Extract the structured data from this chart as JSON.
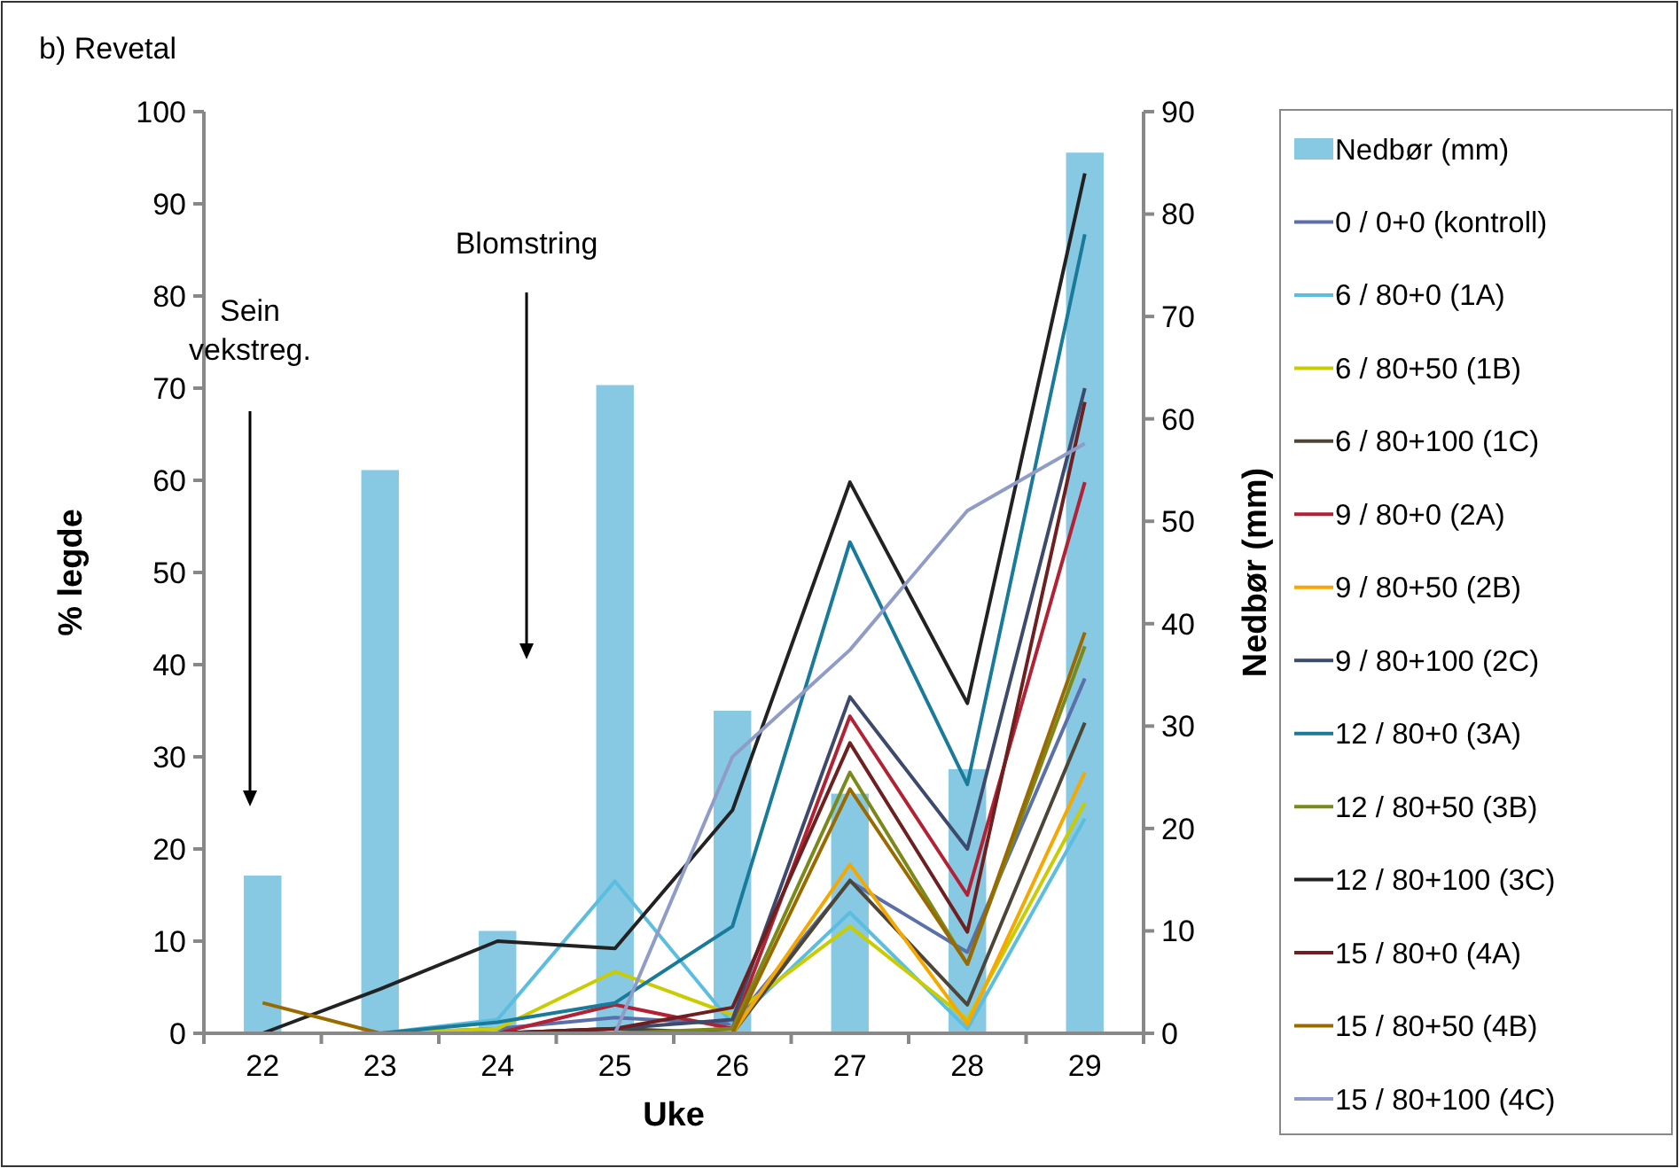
{
  "chart_data": {
    "type": "line",
    "title": "b) Revetal",
    "xlabel": "Uke",
    "ylabel": "% legde",
    "y2label": "Nedbør (mm)",
    "categories": [
      "22",
      "23",
      "24",
      "25",
      "26",
      "27",
      "28",
      "29"
    ],
    "ylim": [
      0,
      100
    ],
    "yticks": [
      0,
      10,
      20,
      30,
      40,
      50,
      60,
      70,
      80,
      90,
      100
    ],
    "y2lim": [
      0,
      90
    ],
    "y2ticks": [
      0,
      10,
      20,
      30,
      40,
      50,
      60,
      70,
      80,
      90
    ],
    "grid": false,
    "legend": "right",
    "annotations": [
      "Sein vekstreg.",
      "Blomstring"
    ],
    "series": [
      {
        "name": "Nedbør (mm)",
        "type": "bar",
        "axis": "y2",
        "color": "#87c9e3",
        "values": [
          15.4,
          55,
          10,
          63.3,
          31.5,
          23.4,
          25.8,
          86
        ]
      },
      {
        "name": "0 / 0+0 (kontroll)",
        "color": "#5b6faa",
        "values": [
          0,
          0,
          0.5,
          1.7,
          1,
          16.5,
          8.8,
          38.5
        ]
      },
      {
        "name": "6 / 80+0 (1A)",
        "color": "#5bbde0",
        "values": [
          0,
          0,
          1.5,
          16.5,
          1,
          13.1,
          0.5,
          23.3
        ]
      },
      {
        "name": "6 / 80+50 (1B)",
        "color": "#c8cc00",
        "values": [
          0,
          0,
          0.5,
          6.7,
          2,
          11.6,
          1.5,
          25
        ]
      },
      {
        "name": "6 / 80+100 (1C)",
        "color": "#4d4536",
        "values": [
          0,
          0,
          0,
          0.5,
          0,
          16.6,
          3.1,
          33.7
        ]
      },
      {
        "name": "9 / 80+0 (2A)",
        "color": "#b22234",
        "values": [
          0,
          0,
          0,
          3.1,
          0.5,
          34.4,
          15,
          59.8
        ]
      },
      {
        "name": "9 / 80+50 (2B)",
        "color": "#f5a800",
        "values": [
          null,
          null,
          null,
          0,
          0,
          18.3,
          1,
          28.3
        ]
      },
      {
        "name": "9 / 80+100 (2C)",
        "color": "#3d4a6b",
        "values": [
          0,
          0,
          0,
          0.5,
          1.5,
          36.5,
          20,
          70
        ]
      },
      {
        "name": "12 / 80+0 (3A)",
        "color": "#1a7a9a",
        "values": [
          0,
          0,
          1.2,
          3.3,
          11.6,
          53.3,
          27,
          86.7
        ]
      },
      {
        "name": "12 / 80+50 (3B)",
        "color": "#7a8a1a",
        "values": [
          0,
          0,
          0,
          0,
          0.5,
          28.3,
          7.5,
          42
        ]
      },
      {
        "name": "12 / 80+100 (3C)",
        "color": "#222222",
        "values": [
          0,
          4.8,
          10,
          9.2,
          24.2,
          59.8,
          35.8,
          93.3
        ]
      },
      {
        "name": "15 / 80+0 (4A)",
        "color": "#6e1f20",
        "values": [
          0,
          0,
          0,
          0.5,
          2.8,
          31.5,
          11,
          68.5
        ]
      },
      {
        "name": "15 / 80+50 (4B)",
        "color": "#9a6a00",
        "values": [
          3.3,
          0,
          0,
          0,
          0,
          26.5,
          7.5,
          43.5
        ]
      },
      {
        "name": "15 / 80+100 (4C)",
        "color": "#8f9cc8",
        "values": [
          0,
          0,
          0,
          0,
          30,
          41.6,
          56.7,
          64
        ]
      }
    ]
  }
}
